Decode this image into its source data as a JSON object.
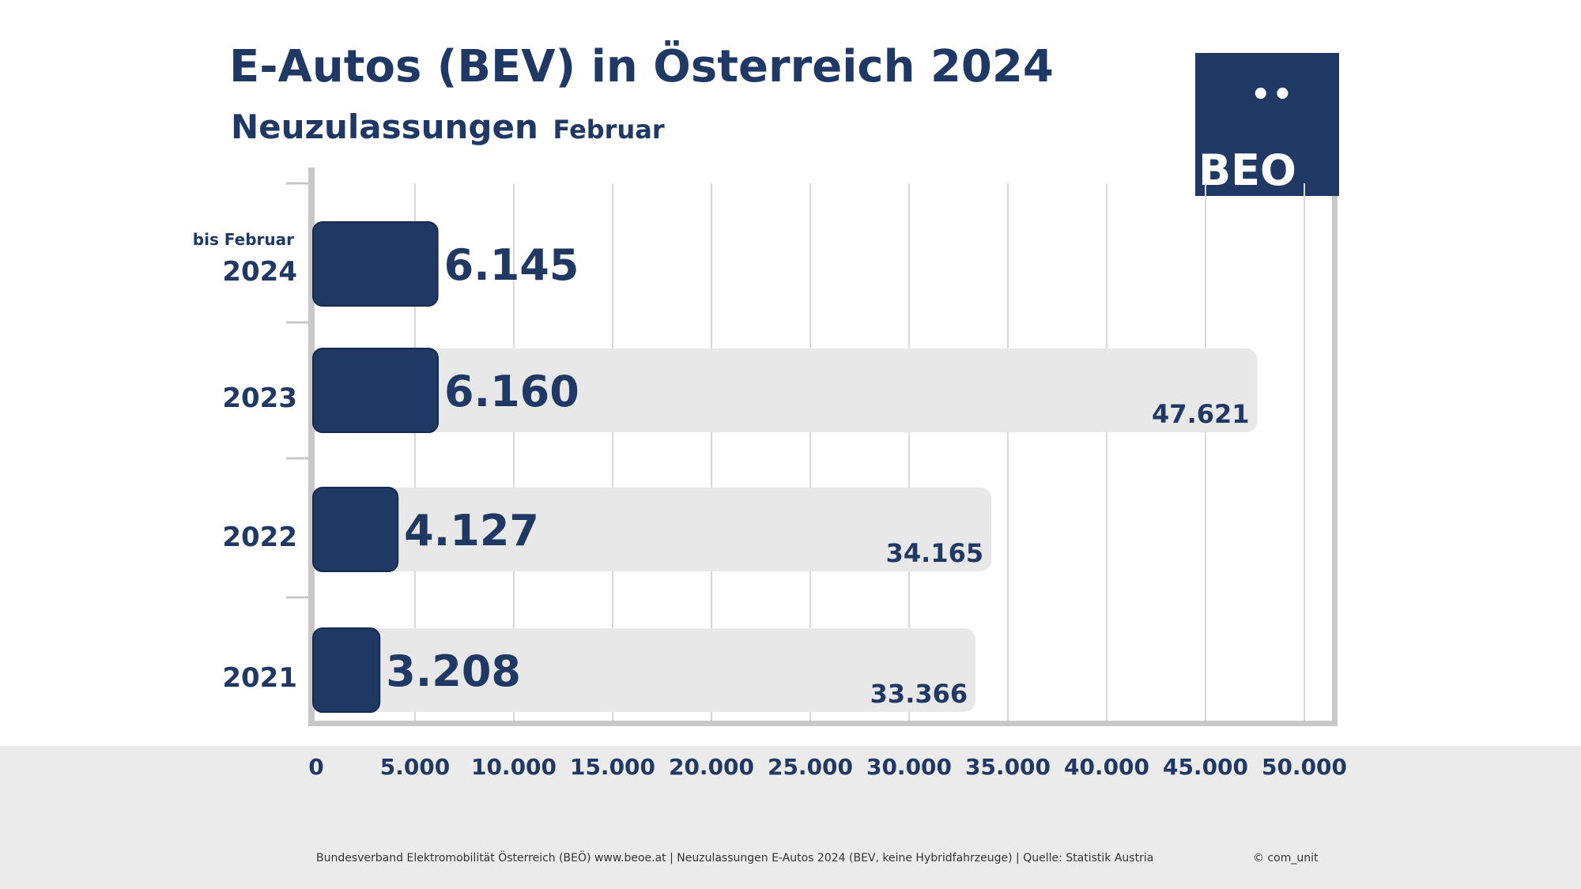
{
  "header": {
    "title": "E-Autos (BEV) in Österreich 2024",
    "subtitle": "Neuzulassungen",
    "subtitle_small": "Februar"
  },
  "logo": {
    "dots": "••",
    "text": "BEO"
  },
  "footer": {
    "source": "Bundesverband Elektromobilität Österreich (BEÖ) www.beoe.at | Neuzulassungen E-Autos 2024 (BEV, keine Hybridfahrzeuge) | Quelle: Statistik Austria",
    "copyright": "© com_unit"
  },
  "colors": {
    "navy": "#1f3864",
    "bar_dark": "#203864",
    "bar_light": "#e8e8e8",
    "axis": "#c8c8c8",
    "grid": "#d9d9d9",
    "footer_band": "#ebebeb"
  },
  "chart_data": {
    "type": "bar",
    "orientation": "horizontal",
    "title": "E-Autos (BEV) in Österreich 2024",
    "subtitle": "Neuzulassungen Februar",
    "categories": [
      "2024",
      "2023",
      "2022",
      "2021"
    ],
    "category_prefix": {
      "2024": "bis Februar"
    },
    "series": [
      {
        "values": [
          6145,
          6160,
          4127,
          3208
        ],
        "labels": [
          "6.145",
          "6.160",
          "4.127",
          "3.208"
        ]
      },
      {
        "values": [
          null,
          47621,
          34165,
          33366
        ],
        "labels": [
          "",
          "47.621",
          "34.165",
          "33.366"
        ]
      }
    ],
    "xlim": [
      0,
      50000
    ],
    "xticks": [
      0,
      5000,
      10000,
      15000,
      20000,
      25000,
      30000,
      35000,
      40000,
      45000,
      50000
    ],
    "xtick_labels": [
      "0",
      "5.000",
      "10.000",
      "15.000",
      "20.000",
      "25.000",
      "30.000",
      "35.000",
      "40.000",
      "45.000",
      "50.000"
    ],
    "grid": true
  }
}
